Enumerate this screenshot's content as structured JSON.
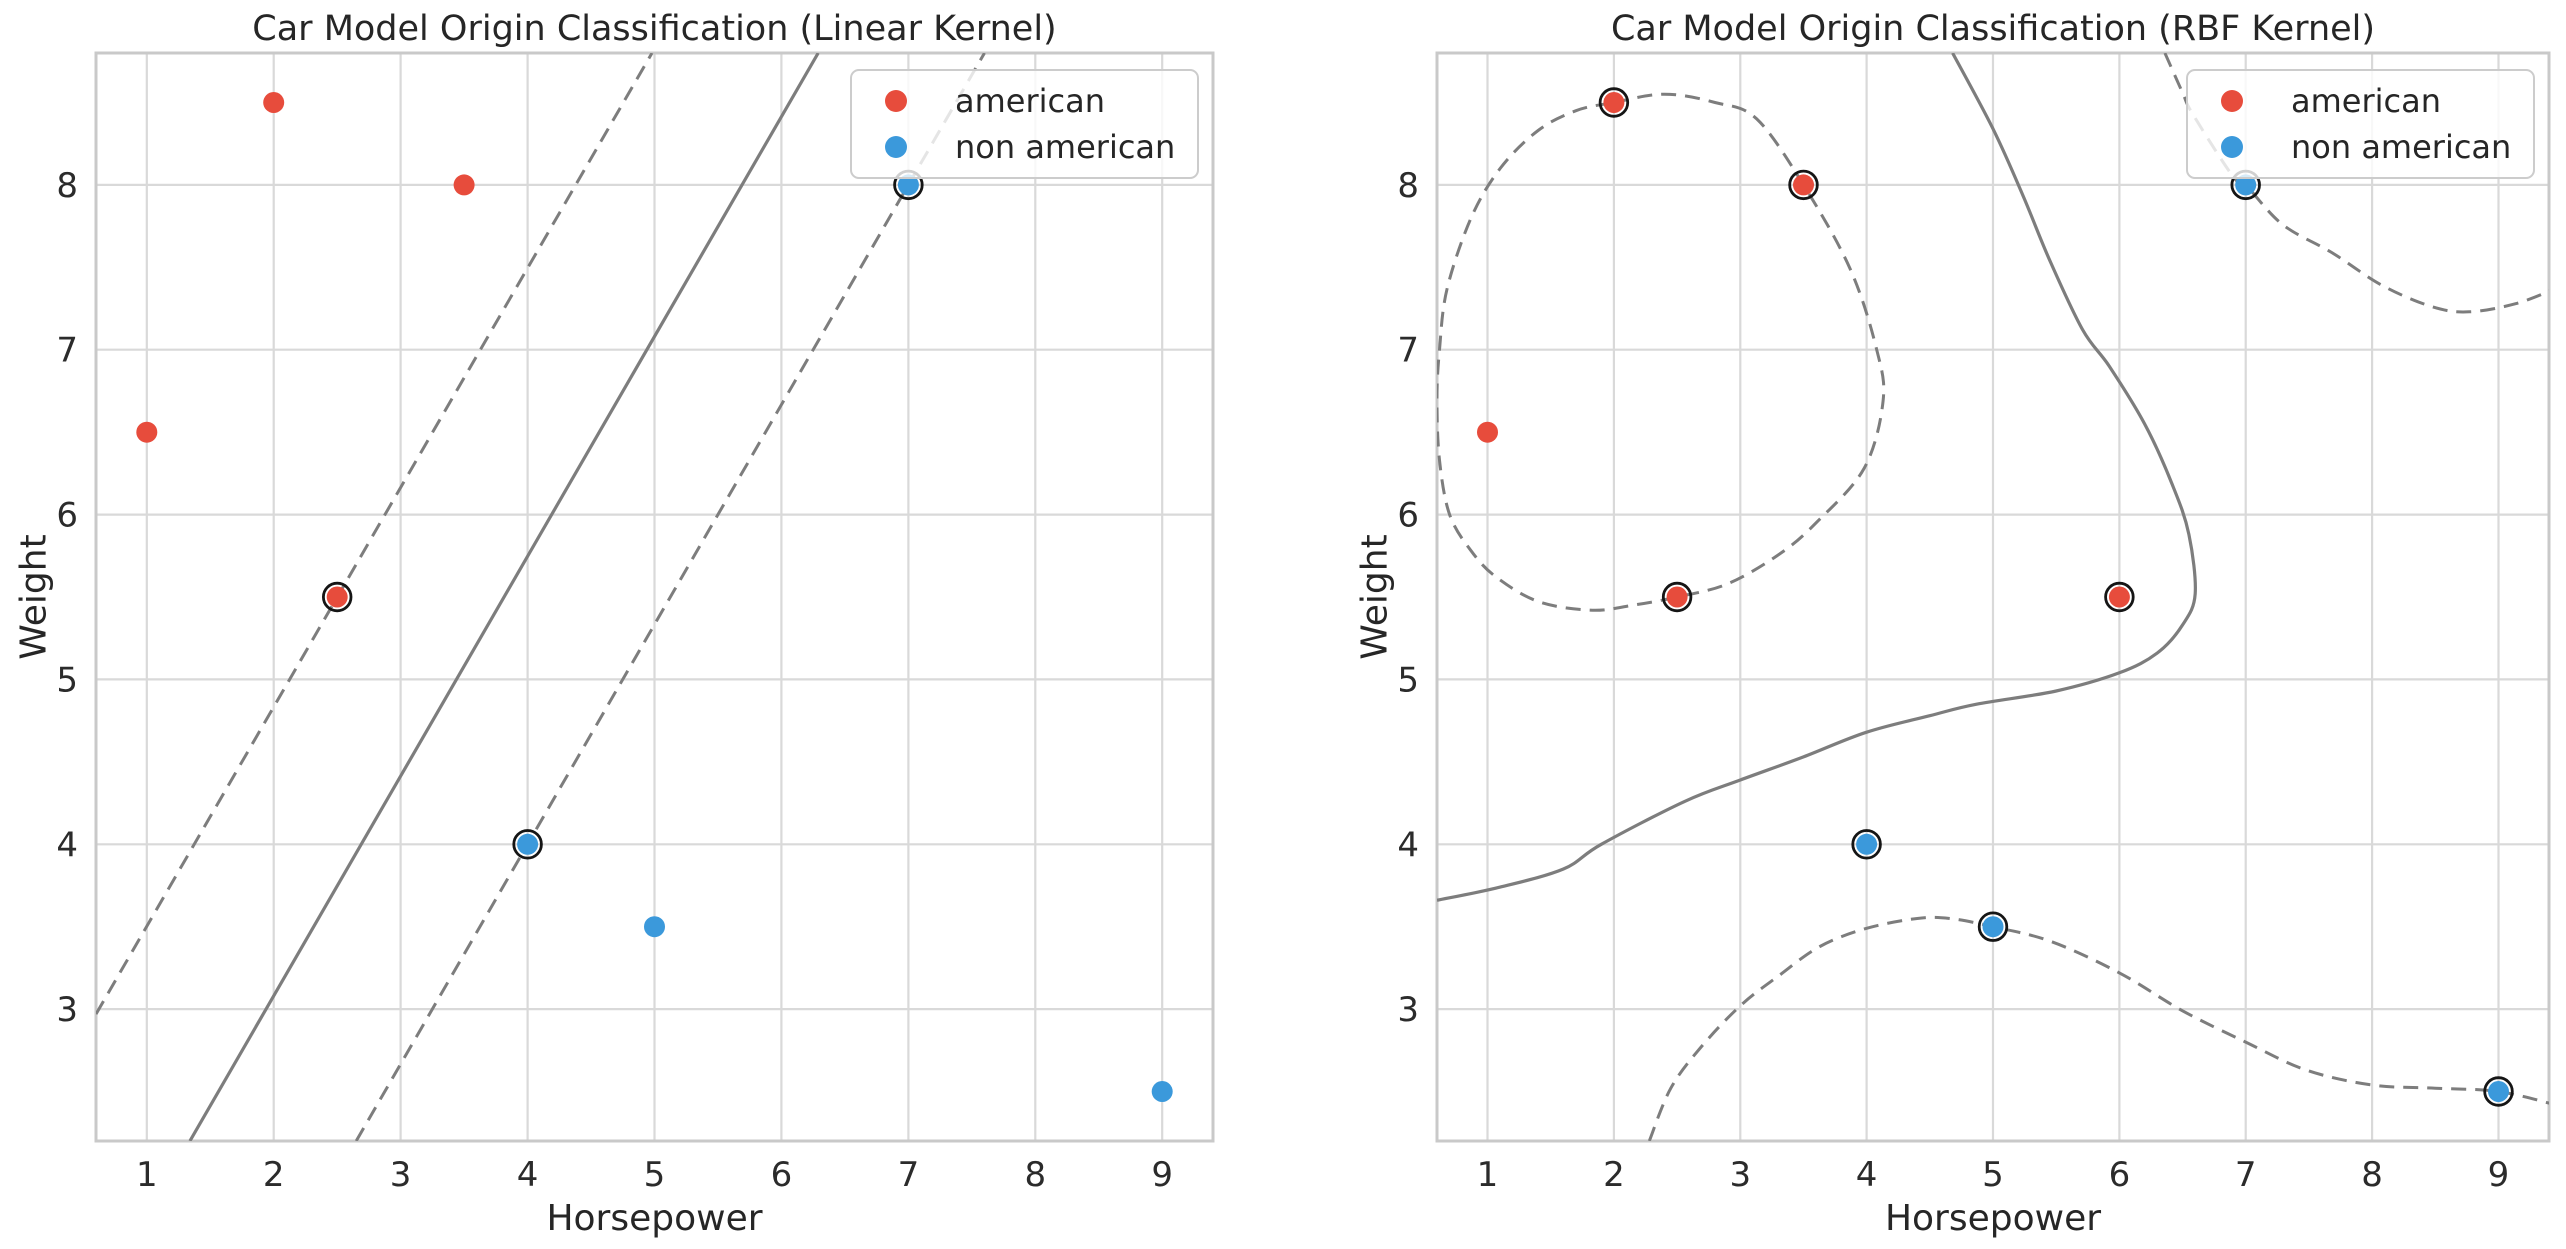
{
  "style": {
    "background": "#ffffff",
    "text_color": "#262626",
    "tick_color": "#2b2b2b",
    "grid_color": "#d9d9d9",
    "spine_color": "#c9c9c9",
    "boundary_color": "#7d7d7d",
    "ring_color": "#151515",
    "legend_border": "#cccccc",
    "american_color": "#e74c3c",
    "non_american_color": "#3b99db"
  },
  "chart_data": [
    {
      "id": "linear-kernel-plot",
      "type": "scatter",
      "title": "Car Model Origin Classification (Linear Kernel)",
      "xlabel": "Horsepower",
      "ylabel": "Weight",
      "xlim": [
        0.6,
        9.4
      ],
      "ylim": [
        2.2,
        8.8
      ],
      "xticks": [
        1,
        2,
        3,
        4,
        5,
        6,
        7,
        8,
        9
      ],
      "yticks": [
        3,
        4,
        5,
        6,
        7,
        8
      ],
      "grid": true,
      "legend_position": "upper right",
      "legend_entries": [
        "american",
        "non american"
      ],
      "series": [
        {
          "name": "american",
          "color": "#e74c3c",
          "points": [
            {
              "x": 1,
              "y": 6.5,
              "support_vector": false
            },
            {
              "x": 2,
              "y": 8.5,
              "support_vector": false
            },
            {
              "x": 3.5,
              "y": 8,
              "support_vector": false
            },
            {
              "x": 2.5,
              "y": 5.5,
              "support_vector": true
            }
          ]
        },
        {
          "name": "non american",
          "color": "#3b99db",
          "points": [
            {
              "x": 4,
              "y": 4,
              "support_vector": true
            },
            {
              "x": 5,
              "y": 3.5,
              "support_vector": false
            },
            {
              "x": 7,
              "y": 8,
              "support_vector": true
            },
            {
              "x": 9,
              "y": 2.5,
              "support_vector": false
            }
          ]
        }
      ],
      "curves": [
        {
          "kind": "decision-boundary",
          "style": "solid",
          "smooth": false,
          "closed": false,
          "points": [
            [
              1.34,
              2.2
            ],
            [
              6.29,
              8.8
            ]
          ]
        },
        {
          "kind": "margin",
          "style": "dashed",
          "smooth": false,
          "closed": false,
          "points": [
            [
              0.6,
              2.97
            ],
            [
              4.98,
              8.8
            ]
          ]
        },
        {
          "kind": "margin",
          "style": "dashed",
          "smooth": false,
          "closed": false,
          "points": [
            [
              2.65,
              2.2
            ],
            [
              7.6,
              8.8
            ]
          ]
        }
      ]
    },
    {
      "id": "rbf-kernel-plot",
      "type": "scatter",
      "title": "Car Model Origin Classification (RBF Kernel)",
      "xlabel": "Horsepower",
      "ylabel": "Weight",
      "xlim": [
        0.6,
        9.4
      ],
      "ylim": [
        2.2,
        8.8
      ],
      "xticks": [
        1,
        2,
        3,
        4,
        5,
        6,
        7,
        8,
        9
      ],
      "yticks": [
        3,
        4,
        5,
        6,
        7,
        8
      ],
      "grid": true,
      "legend_position": "upper right",
      "legend_entries": [
        "american",
        "non american"
      ],
      "series": [
        {
          "name": "american",
          "color": "#e74c3c",
          "points": [
            {
              "x": 1,
              "y": 6.5,
              "support_vector": false
            },
            {
              "x": 2,
              "y": 8.5,
              "support_vector": true
            },
            {
              "x": 3.5,
              "y": 8,
              "support_vector": true
            },
            {
              "x": 2.5,
              "y": 5.5,
              "support_vector": true
            },
            {
              "x": 6,
              "y": 5.5,
              "support_vector": true
            }
          ]
        },
        {
          "name": "non american",
          "color": "#3b99db",
          "points": [
            {
              "x": 4,
              "y": 4,
              "support_vector": true
            },
            {
              "x": 5,
              "y": 3.5,
              "support_vector": true
            },
            {
              "x": 7,
              "y": 8,
              "support_vector": true
            },
            {
              "x": 9,
              "y": 2.5,
              "support_vector": true
            }
          ]
        }
      ],
      "curves": [
        {
          "kind": "decision-boundary",
          "style": "solid",
          "smooth": true,
          "closed": false,
          "points": [
            [
              0.6,
              3.66
            ],
            [
              1.1,
              3.74
            ],
            [
              1.6,
              3.85
            ],
            [
              1.9,
              4.0
            ],
            [
              2.56,
              4.26
            ],
            [
              3.0,
              4.39
            ],
            [
              3.5,
              4.53
            ],
            [
              4.0,
              4.68
            ],
            [
              4.5,
              4.78
            ],
            [
              4.87,
              4.85
            ],
            [
              5.5,
              4.93
            ],
            [
              6.0,
              5.04
            ],
            [
              6.3,
              5.16
            ],
            [
              6.5,
              5.33
            ],
            [
              6.6,
              5.52
            ],
            [
              6.55,
              5.88
            ],
            [
              6.42,
              6.18
            ],
            [
              6.2,
              6.55
            ],
            [
              5.92,
              6.9
            ],
            [
              5.71,
              7.12
            ],
            [
              5.45,
              7.54
            ],
            [
              5.24,
              7.93
            ],
            [
              5.0,
              8.34
            ],
            [
              4.68,
              8.8
            ]
          ]
        },
        {
          "kind": "margin",
          "style": "dashed",
          "smooth": true,
          "closed": true,
          "points": [
            [
              2.0,
              8.5
            ],
            [
              2.4,
              8.55
            ],
            [
              2.8,
              8.5
            ],
            [
              3.13,
              8.4
            ],
            [
              3.5,
              8.0
            ],
            [
              3.87,
              7.49
            ],
            [
              4.08,
              7.0
            ],
            [
              4.13,
              6.69
            ],
            [
              3.98,
              6.28
            ],
            [
              3.6,
              5.95
            ],
            [
              3.31,
              5.76
            ],
            [
              2.9,
              5.58
            ],
            [
              2.5,
              5.5
            ],
            [
              2.15,
              5.45
            ],
            [
              1.83,
              5.42
            ],
            [
              1.41,
              5.47
            ],
            [
              1.07,
              5.62
            ],
            [
              0.87,
              5.78
            ],
            [
              0.7,
              6.0
            ],
            [
              0.62,
              6.33
            ],
            [
              0.6,
              6.7
            ],
            [
              0.62,
              7.0
            ],
            [
              0.68,
              7.37
            ],
            [
              0.87,
              7.8
            ],
            [
              1.1,
              8.1
            ],
            [
              1.4,
              8.33
            ],
            [
              1.7,
              8.45
            ]
          ]
        },
        {
          "kind": "margin",
          "style": "dashed",
          "smooth": true,
          "closed": false,
          "points": [
            [
              2.28,
              2.2
            ],
            [
              2.45,
              2.52
            ],
            [
              2.69,
              2.77
            ],
            [
              3.0,
              3.02
            ],
            [
              3.3,
              3.2
            ],
            [
              3.63,
              3.38
            ],
            [
              4.0,
              3.49
            ],
            [
              4.4,
              3.55
            ],
            [
              4.66,
              3.55
            ],
            [
              5.0,
              3.5
            ],
            [
              5.46,
              3.41
            ],
            [
              6.0,
              3.22
            ],
            [
              6.5,
              2.99
            ],
            [
              7.0,
              2.8
            ],
            [
              7.48,
              2.63
            ],
            [
              8.0,
              2.54
            ],
            [
              8.5,
              2.52
            ],
            [
              9.0,
              2.5
            ],
            [
              9.45,
              2.42
            ]
          ]
        },
        {
          "kind": "margin",
          "style": "dashed",
          "smooth": true,
          "closed": false,
          "points": [
            [
              6.36,
              8.8
            ],
            [
              6.5,
              8.56
            ],
            [
              6.58,
              8.43
            ],
            [
              6.9,
              8.05
            ],
            [
              7.0,
              8.0
            ],
            [
              7.29,
              7.76
            ],
            [
              7.68,
              7.59
            ],
            [
              8.08,
              7.39
            ],
            [
              8.48,
              7.26
            ],
            [
              8.77,
              7.23
            ],
            [
              9.14,
              7.28
            ],
            [
              9.45,
              7.37
            ]
          ]
        }
      ]
    }
  ]
}
